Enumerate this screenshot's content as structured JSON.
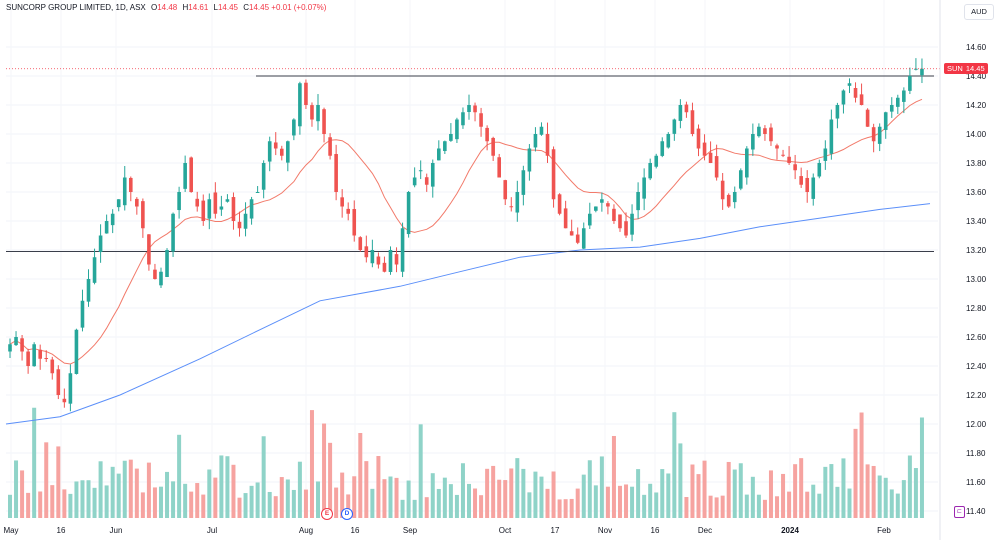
{
  "legend": {
    "symbol": "SUNCORP GROUP LIMITED, 1D, ASX",
    "open_label": "O",
    "open": "14.48",
    "high_label": "H",
    "high": "14.61",
    "low_label": "L",
    "low": "14.45",
    "close_label": "C",
    "close": "14.45",
    "change": "+0.01 (+0.07%)"
  },
  "currency": "AUD",
  "price_tag": {
    "ticker": "SUN",
    "value": "14.45"
  },
  "markers": {
    "earnings": "E",
    "dividend": "D"
  },
  "colors": {
    "up": "#26a69a",
    "down": "#ef5350",
    "ma_fast": "#f27a6a",
    "ma_slow": "#5b8ff9",
    "vol_up": "#8fd3c8",
    "vol_down": "#f6a3a0",
    "price_line": "#f23645",
    "level_line": "#3a3e4a"
  },
  "chart_data": {
    "type": "candlestick",
    "y_axis": {
      "ticks": [
        "14.60",
        "14.40",
        "14.20",
        "14.00",
        "13.80",
        "13.60",
        "13.40",
        "13.20",
        "13.00",
        "12.80",
        "12.60",
        "12.40",
        "12.20",
        "12.00",
        "11.80",
        "11.60",
        "11.40"
      ],
      "range": [
        11.4,
        14.7
      ]
    },
    "x_axis": {
      "ticks": [
        "May",
        "16",
        "Jun",
        "Jul",
        "Aug",
        "16",
        "Sep",
        "Oct",
        "17",
        "Nov",
        "16",
        "Dec",
        "2024",
        "Feb"
      ]
    },
    "horizontal_levels": [
      14.4,
      13.19
    ],
    "last_price": 14.45,
    "close": [
      12.55,
      12.6,
      12.5,
      12.4,
      12.55,
      12.45,
      12.45,
      12.35,
      12.2,
      12.15,
      12.35,
      12.65,
      12.85,
      13.0,
      13.15,
      13.3,
      13.4,
      13.45,
      13.55,
      13.7,
      13.6,
      13.5,
      13.35,
      13.1,
      13.0,
      13.05,
      13.2,
      13.45,
      13.6,
      13.8,
      13.6,
      13.5,
      13.4,
      13.55,
      13.45,
      13.5,
      13.55,
      13.4,
      13.35,
      13.45,
      13.55,
      13.6,
      13.8,
      13.95,
      13.9,
      13.85,
      13.95,
      14.1,
      14.35,
      14.2,
      14.1,
      14.2,
      14.0,
      13.85,
      13.6,
      13.5,
      13.45,
      13.3,
      13.2,
      13.15,
      13.2,
      13.1,
      13.05,
      13.2,
      13.1,
      13.35,
      13.6,
      13.7,
      13.75,
      13.65,
      13.8,
      13.9,
      13.95,
      14.0,
      14.1,
      14.15,
      14.2,
      14.15,
      14.05,
      13.95,
      13.85,
      13.7,
      13.55,
      13.5,
      13.6,
      13.75,
      13.9,
      14.0,
      14.05,
      13.85,
      13.55,
      13.45,
      13.35,
      13.3,
      13.25,
      13.35,
      13.45,
      13.5,
      13.55,
      13.5,
      13.4,
      13.35,
      13.3,
      13.45,
      13.6,
      13.7,
      13.8,
      13.85,
      13.95,
      14.0,
      14.1,
      14.2,
      14.15,
      14.0,
      13.9,
      13.85,
      13.8,
      13.7,
      13.55,
      13.5,
      13.6,
      13.75,
      13.9,
      14.0,
      14.05,
      14.0,
      13.95,
      13.9,
      13.85,
      13.8,
      13.75,
      13.65,
      13.6,
      13.7,
      13.8,
      13.9,
      14.1,
      14.2,
      14.3,
      14.35,
      14.25,
      14.2,
      14.05,
      13.95,
      14.05,
      14.15,
      14.2,
      14.25,
      14.3,
      14.4,
      14.45,
      14.45
    ],
    "volume_axis": "relative"
  }
}
